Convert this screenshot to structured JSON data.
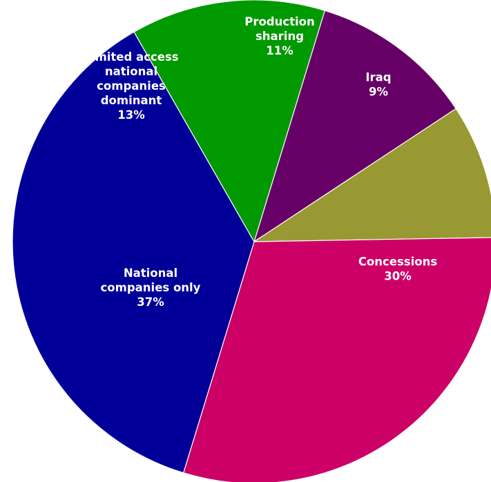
{
  "chart_data": {
    "type": "pie",
    "start_angle_deg": 73,
    "direction": "clockwise",
    "slices": [
      {
        "label_lines": [
          "Production",
          "sharing"
        ],
        "value": 11,
        "value_label": "11%",
        "color": "#660066"
      },
      {
        "label_lines": [
          "Iraq"
        ],
        "value": 9,
        "value_label": "9%",
        "color": "#999933"
      },
      {
        "label_lines": [
          "Concessions"
        ],
        "value": 30,
        "value_label": "30%",
        "color": "#CC0066"
      },
      {
        "label_lines": [
          "National",
          "companies only"
        ],
        "value": 37,
        "value_label": "37%",
        "color": "#000099"
      },
      {
        "label_lines": [
          "Limited access",
          "national",
          "companies",
          "dominant"
        ],
        "value": 13,
        "value_label": "13%",
        "color": "#009900"
      }
    ]
  }
}
